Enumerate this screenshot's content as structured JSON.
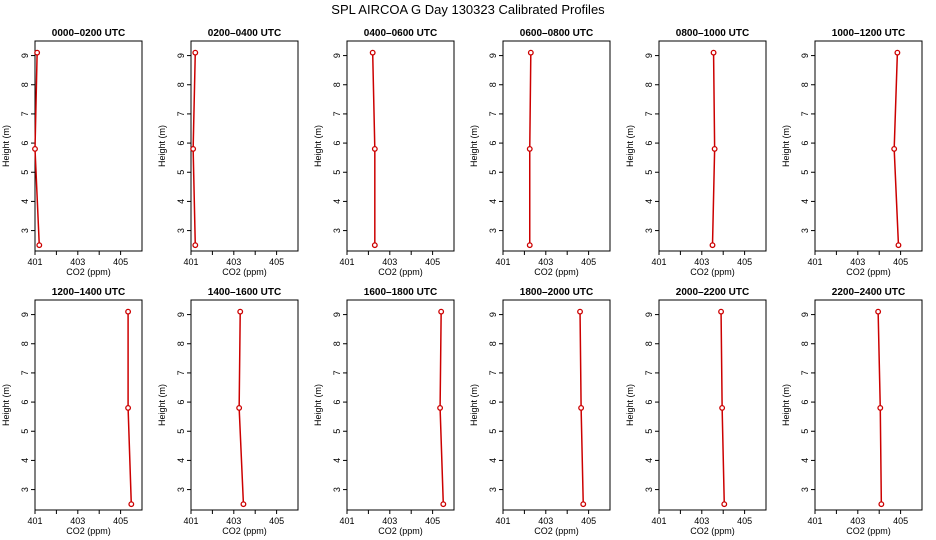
{
  "chart_data": {
    "type": "line",
    "title": "SPL AIRCOA G  Day 130323  Calibrated Profiles",
    "xlabel": "CO2 (ppm)",
    "ylabel": "Height (m)",
    "xlim": [
      401,
      406
    ],
    "ylim": [
      2.3,
      9.5
    ],
    "x_ticks": [
      401,
      402,
      403,
      404,
      405
    ],
    "x_tick_labels": [
      "401",
      "",
      "403",
      "",
      "405"
    ],
    "y_ticks": [
      3,
      4,
      5,
      6,
      7,
      8,
      9
    ],
    "y_tick_labels": [
      "3",
      "4",
      "5",
      "6",
      "7",
      "8",
      "9"
    ],
    "series_color": "#cc0000",
    "panels": [
      {
        "title": "0000–0200 UTC",
        "heights": [
          9.1,
          5.8,
          2.5
        ],
        "co2": [
          401.1,
          401.0,
          401.2
        ]
      },
      {
        "title": "0200–0400 UTC",
        "heights": [
          9.1,
          5.8,
          2.5
        ],
        "co2": [
          401.2,
          401.1,
          401.2
        ]
      },
      {
        "title": "0400–0600 UTC",
        "heights": [
          9.1,
          5.8,
          2.5
        ],
        "co2": [
          402.2,
          402.3,
          402.3
        ]
      },
      {
        "title": "0600–0800 UTC",
        "heights": [
          9.1,
          5.8,
          2.5
        ],
        "co2": [
          402.3,
          402.25,
          402.25
        ]
      },
      {
        "title": "0800–1000 UTC",
        "heights": [
          9.1,
          5.8,
          2.5
        ],
        "co2": [
          403.55,
          403.6,
          403.5
        ]
      },
      {
        "title": "1000–1200 UTC",
        "heights": [
          9.1,
          5.8,
          2.5
        ],
        "co2": [
          404.85,
          404.7,
          404.9
        ]
      },
      {
        "title": "1200–1400 UTC",
        "heights": [
          9.1,
          5.8,
          2.5
        ],
        "co2": [
          405.35,
          405.35,
          405.5
        ]
      },
      {
        "title": "1400–1600 UTC",
        "heights": [
          9.1,
          5.8,
          2.5
        ],
        "co2": [
          403.3,
          403.25,
          403.45
        ]
      },
      {
        "title": "1600–1800 UTC",
        "heights": [
          9.1,
          5.8,
          2.5
        ],
        "co2": [
          405.4,
          405.35,
          405.5
        ]
      },
      {
        "title": "1800–2000 UTC",
        "heights": [
          9.1,
          5.8,
          2.5
        ],
        "co2": [
          404.6,
          404.65,
          404.75
        ]
      },
      {
        "title": "2000–2200 UTC",
        "heights": [
          9.1,
          5.8,
          2.5
        ],
        "co2": [
          403.9,
          403.95,
          404.05
        ]
      },
      {
        "title": "2200–2400 UTC",
        "heights": [
          9.1,
          5.8,
          2.5
        ],
        "co2": [
          403.95,
          404.05,
          404.1
        ]
      }
    ]
  }
}
